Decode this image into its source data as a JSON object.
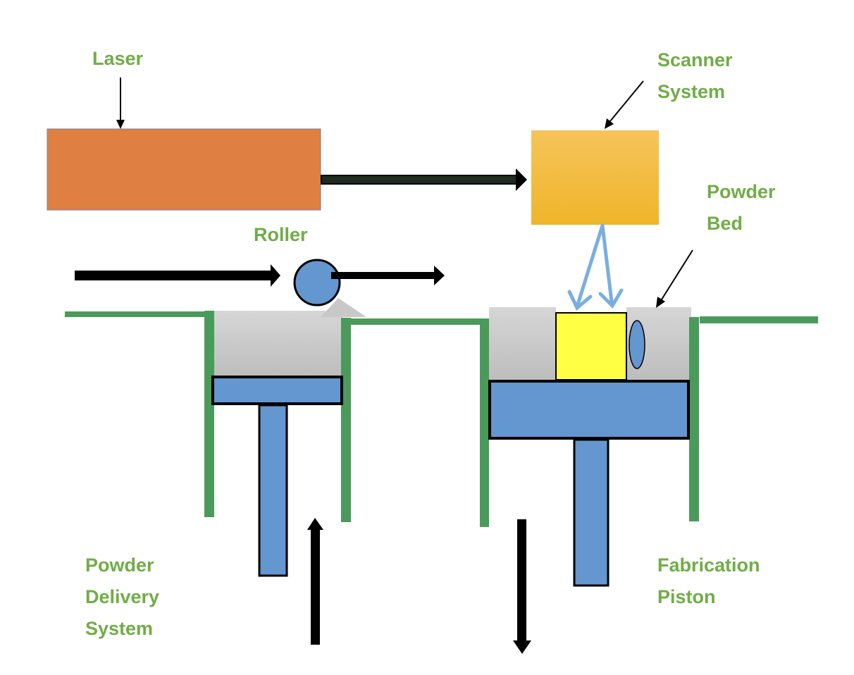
{
  "labels": {
    "laser": "Laser",
    "scanner_system": "Scanner\nSystem",
    "powder_bed": "Powder\nBed",
    "roller": "Roller",
    "powder_delivery_system": "Powder\nDelivery\nSystem",
    "fabrication_piston": "Fabrication\nPiston"
  },
  "colors": {
    "label_text": "#70ad47",
    "laser": "#e07f42",
    "scanner_top": "#f6c45a",
    "scanner_bottom": "#efb529",
    "wall": "#4a9a5c",
    "piston": "#6496cf",
    "powder": "#cccccc",
    "part": "#ffff44",
    "beam": "#7aaee0",
    "arrow": "#000000"
  }
}
